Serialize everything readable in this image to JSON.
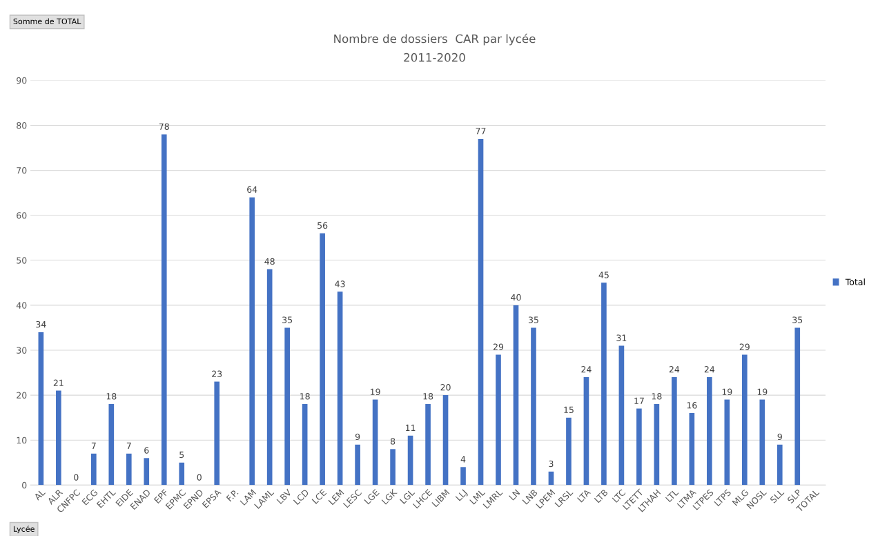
{
  "chart_data": {
    "type": "bar",
    "title": "Nombre de dossiers  CAR par lycée",
    "subtitle": "2011-2020",
    "categories": [
      "AL",
      "ALR",
      "CNFPC",
      "ECG",
      "EHTL",
      "EIDE",
      "ENAD",
      "EPF",
      "EPMC",
      "EPND",
      "EPSA",
      "F.P.",
      "LAM",
      "LAML",
      "LBV",
      "LCD",
      "LCE",
      "LEM",
      "LESC",
      "LGE",
      "LGK",
      "LGL",
      "LHCE",
      "LIBM",
      "LLJ",
      "LML",
      "LMRL",
      "LN",
      "LNB",
      "LPEM",
      "LRSL",
      "LTA",
      "LTB",
      "LTC",
      "LTETT",
      "LTHAH",
      "LTL",
      "LTMA",
      "LTPES",
      "LTPS",
      "MLG",
      "NOSL",
      "SLL",
      "SLP",
      "TOTAL"
    ],
    "series": [
      {
        "name": "Total",
        "color": "#4472c4",
        "values": [
          34,
          21,
          0,
          7,
          18,
          7,
          6,
          78,
          5,
          0,
          23,
          null,
          64,
          48,
          35,
          18,
          56,
          43,
          9,
          19,
          8,
          11,
          18,
          20,
          4,
          77,
          29,
          40,
          35,
          3,
          15,
          24,
          45,
          31,
          17,
          18,
          24,
          16,
          24,
          19,
          29,
          19,
          9,
          35,
          null
        ]
      }
    ],
    "ylim": [
      0,
      90
    ],
    "yticks": [
      0,
      10,
      20,
      30,
      40,
      50,
      60,
      70,
      80,
      90
    ],
    "grid": "y",
    "legend": "right",
    "data_labels": true,
    "annotations": [
      "Somme de TOTAL",
      "Lycée"
    ]
  }
}
